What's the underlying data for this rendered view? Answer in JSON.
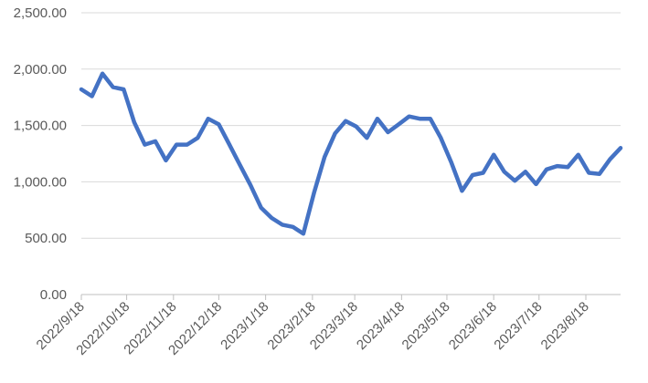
{
  "chart_data": {
    "type": "line",
    "title": "",
    "xlabel": "",
    "ylabel": "",
    "ylim": [
      0,
      2500
    ],
    "grid": true,
    "legend": "none",
    "y_ticks": [
      "0.00",
      "500.00",
      "1,000.00",
      "1,500.00",
      "2,000.00",
      "2,500.00"
    ],
    "y_tick_values": [
      0,
      500,
      1000,
      1500,
      2000,
      2500
    ],
    "x_ticks": [
      "2022/9/18",
      "2022/10/18",
      "2022/11/18",
      "2022/12/18",
      "2023/1/18",
      "2023/2/18",
      "2023/3/18",
      "2023/4/18",
      "2023/5/18",
      "2023/6/18",
      "2023/7/18",
      "2023/8/18"
    ],
    "series": [
      {
        "color": "#4472c4",
        "x": [
          "2022/9/18",
          "2022/9/25",
          "2022/10/2",
          "2022/10/9",
          "2022/10/16",
          "2022/10/23",
          "2022/10/30",
          "2022/11/6",
          "2022/11/13",
          "2022/11/20",
          "2022/11/27",
          "2022/12/4",
          "2022/12/11",
          "2022/12/18",
          "2022/12/25",
          "2023/1/1",
          "2023/1/8",
          "2023/1/15",
          "2023/1/22",
          "2023/1/29",
          "2023/2/5",
          "2023/2/12",
          "2023/2/19",
          "2023/2/26",
          "2023/3/5",
          "2023/3/12",
          "2023/3/19",
          "2023/3/26",
          "2023/4/2",
          "2023/4/9",
          "2023/4/16",
          "2023/4/23",
          "2023/4/30",
          "2023/5/7",
          "2023/5/14",
          "2023/5/21",
          "2023/5/28",
          "2023/6/4",
          "2023/6/11",
          "2023/6/18",
          "2023/6/25",
          "2023/7/2",
          "2023/7/9",
          "2023/7/16",
          "2023/7/23",
          "2023/7/30",
          "2023/8/6",
          "2023/8/13",
          "2023/8/20",
          "2023/8/27",
          "2023/9/3",
          "2023/9/10"
        ],
        "values": [
          1820,
          1760,
          1960,
          1840,
          1820,
          1530,
          1330,
          1360,
          1190,
          1330,
          1330,
          1390,
          1560,
          1510,
          1330,
          1150,
          970,
          770,
          680,
          620,
          600,
          540,
          900,
          1220,
          1430,
          1540,
          1490,
          1390,
          1560,
          1440,
          1510,
          1580,
          1560,
          1560,
          1390,
          1170,
          920,
          1060,
          1080,
          1240,
          1090,
          1010,
          1090,
          980,
          1110,
          1140,
          1130,
          1240,
          1080,
          1070,
          1200,
          1300
        ]
      }
    ]
  }
}
